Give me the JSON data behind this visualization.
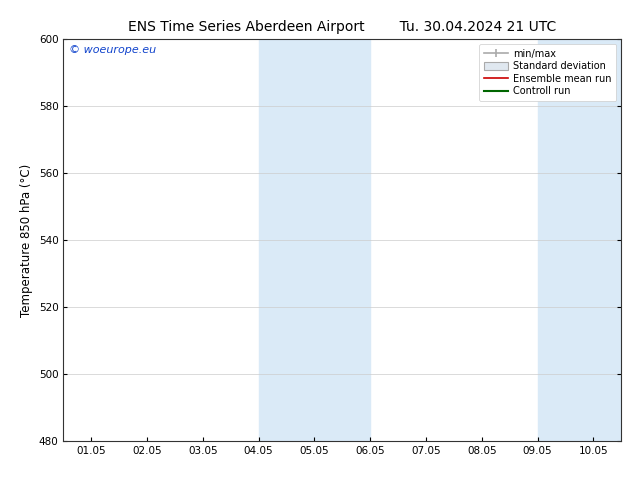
{
  "title": "ENS Time Series Aberdeen Airport",
  "title2": "Tu. 30.04.2024 21 UTC",
  "ylabel": "Temperature 850 hPa (°C)",
  "watermark": "© woeurope.eu",
  "ylim": [
    480,
    600
  ],
  "yticks": [
    480,
    500,
    520,
    540,
    560,
    580,
    600
  ],
  "xtick_labels": [
    "01.05",
    "02.05",
    "03.05",
    "04.05",
    "05.05",
    "06.05",
    "07.05",
    "08.05",
    "09.05",
    "10.05"
  ],
  "shaded_bands": [
    {
      "xstart": 3.5,
      "xend": 5.5
    },
    {
      "xstart": 8.5,
      "xend": 10.5
    }
  ],
  "shaded_color": "#daeaf7",
  "grid_color": "#cccccc",
  "background_color": "#ffffff",
  "title_fontsize": 10,
  "tick_fontsize": 7.5,
  "ylabel_fontsize": 8.5,
  "watermark_color": "#1144cc",
  "legend_minmax_color": "#aaaaaa",
  "legend_std_color": "#cccccc",
  "legend_ens_color": "#cc0000",
  "legend_ctrl_color": "#006600"
}
